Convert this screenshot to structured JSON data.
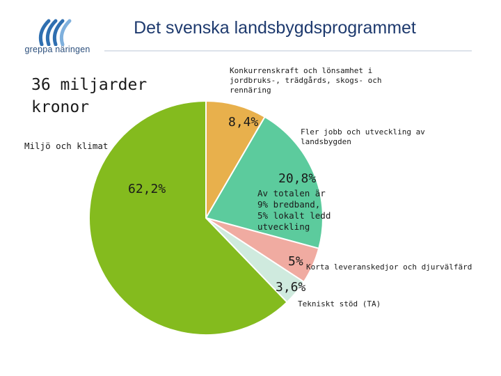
{
  "header": {
    "title": "Det svenska landsbygdsprogrammet",
    "logo_text": "greppa näringen",
    "subtitle_lines": [
      "36 miljarder",
      "kronor"
    ]
  },
  "colors": {
    "logo_blue": "#2f6fb0",
    "logo_light": "#7fb0dd"
  },
  "chart_data": {
    "type": "pie",
    "title": "Det svenska landsbygdsprogrammet",
    "series": [
      {
        "name": "Konkurrenskraft och lönsamhet i jordbruks-, trädgårds, skogs- och rennäring",
        "label_lines": [
          "Konkurrenskraft och lönsamhet i",
          "jordbruks-, trädgårds, skogs- och",
          "rennäring"
        ],
        "value": 8.4,
        "display": "8,4%",
        "color": "#e8b04c"
      },
      {
        "name": "Fler jobb och utveckling av landsbygden",
        "label_lines": [
          "Fler jobb och utveckling av",
          "landsbygden"
        ],
        "value": 20.8,
        "display": "20,8%",
        "color": "#5ccb9d",
        "note_lines": [
          "Av totalen är",
          "9% bredband,",
          "5% lokalt ledd",
          "utveckling"
        ]
      },
      {
        "name": "Korta leveranskedjor och djurvälfärd",
        "label_lines": [
          "Korta leveranskedjor och djurvälfärd"
        ],
        "value": 5,
        "display": "5%",
        "color": "#f0aba1"
      },
      {
        "name": "Tekniskt stöd (TA)",
        "label_lines": [
          "Tekniskt stöd  (TA)"
        ],
        "value": 3.6,
        "display": "3,6%",
        "color": "#cfeade"
      },
      {
        "name": "Miljö och klimat",
        "label_lines": [
          "Miljö och klimat"
        ],
        "value": 62.2,
        "display": "62,2%",
        "color": "#84bb1e"
      }
    ]
  }
}
